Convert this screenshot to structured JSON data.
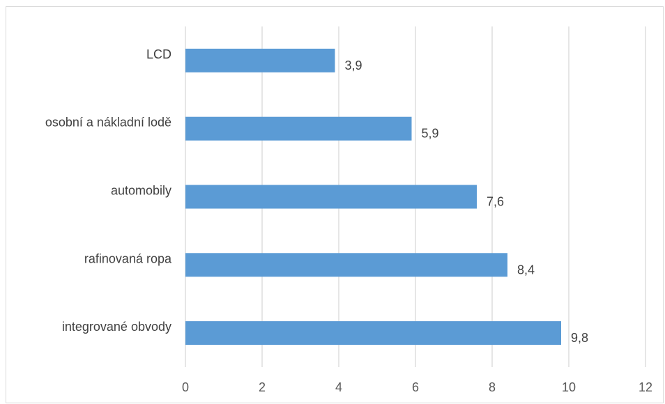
{
  "chart_data": {
    "type": "bar",
    "orientation": "horizontal",
    "categories": [
      "integrované obvody",
      "rafinovaná ropa",
      "automobily",
      "osobní a nákladní lodě",
      "LCD"
    ],
    "values": [
      9.8,
      8.4,
      7.6,
      5.9,
      3.9
    ],
    "value_labels": [
      "9,8",
      "8,4",
      "7,6",
      "5,9",
      "3,9"
    ],
    "xlim": [
      0,
      12
    ],
    "xticks": [
      0,
      2,
      4,
      6,
      8,
      10,
      12
    ],
    "title": "",
    "xlabel": "",
    "ylabel": "",
    "grid": true,
    "legend": "none",
    "colors": {
      "bar": "#5b9bd5",
      "grid": "#d9d9d9",
      "border": "#d9d9d9"
    }
  }
}
